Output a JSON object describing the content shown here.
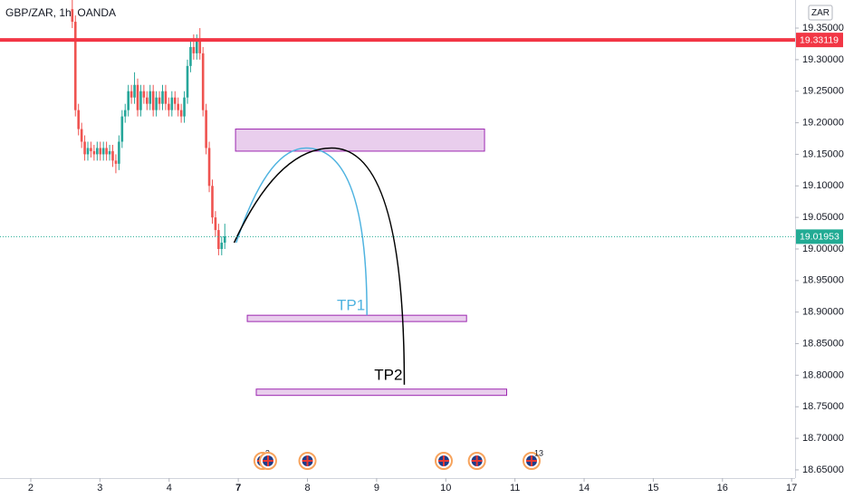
{
  "chart_data": {
    "type": "candlestick",
    "title": "GBP/ZAR, 1h, OANDA",
    "currency": "ZAR",
    "colors": {
      "up": "#26a69a",
      "down": "#ef5350"
    },
    "x": [
      0.6,
      0.645,
      0.69,
      0.735,
      0.78,
      0.825,
      0.87,
      0.915,
      0.96,
      1.005,
      1.05,
      1.095,
      1.14,
      1.185,
      1.23,
      1.275,
      1.32,
      1.365,
      1.41,
      1.455,
      1.5,
      1.545,
      1.59,
      1.635,
      1.68,
      1.725,
      1.77,
      1.815,
      1.86,
      1.905,
      1.95,
      1.995,
      2.04,
      2.085,
      2.13,
      2.175,
      2.22,
      2.265,
      2.31,
      2.355,
      2.4,
      2.445,
      2.49,
      2.535,
      2.58,
      2.625,
      2.67,
      2.715,
      2.76,
      2.805
    ],
    "open": [
      19.38,
      19.36,
      19.22,
      19.19,
      19.17,
      19.15,
      19.16,
      19.155,
      19.15,
      19.16,
      19.15,
      19.16,
      19.15,
      19.155,
      19.14,
      19.135,
      19.17,
      19.21,
      19.22,
      19.25,
      19.24,
      19.26,
      19.22,
      19.25,
      19.24,
      19.23,
      19.25,
      19.22,
      19.24,
      19.23,
      19.25,
      19.23,
      19.22,
      19.24,
      19.23,
      19.22,
      19.21,
      19.24,
      19.29,
      19.32,
      19.31,
      19.33,
      19.31,
      19.22,
      19.16,
      19.1,
      19.05,
      19.03,
      19.0,
      19.01
    ],
    "high": [
      19.4,
      19.37,
      19.23,
      19.2,
      19.18,
      19.17,
      19.17,
      19.165,
      19.17,
      19.17,
      19.17,
      19.17,
      19.165,
      19.165,
      19.15,
      19.18,
      19.22,
      19.23,
      19.26,
      19.26,
      19.28,
      19.27,
      19.26,
      19.26,
      19.25,
      19.26,
      19.26,
      19.25,
      19.25,
      19.26,
      19.26,
      19.24,
      19.25,
      19.25,
      19.24,
      19.23,
      19.25,
      19.3,
      19.33,
      19.34,
      19.34,
      19.35,
      19.32,
      19.23,
      19.17,
      19.11,
      19.06,
      19.04,
      19.02,
      19.04
    ],
    "low": [
      19.35,
      19.21,
      19.18,
      19.16,
      19.14,
      19.14,
      19.145,
      19.14,
      19.14,
      19.14,
      19.14,
      19.14,
      19.14,
      19.13,
      19.12,
      19.125,
      19.16,
      19.2,
      19.21,
      19.23,
      19.23,
      19.21,
      19.21,
      19.23,
      19.22,
      19.22,
      19.21,
      19.21,
      19.22,
      19.22,
      19.22,
      19.21,
      19.21,
      19.22,
      19.21,
      19.2,
      19.2,
      19.23,
      19.28,
      19.3,
      19.3,
      19.3,
      19.21,
      19.15,
      19.09,
      19.04,
      19.02,
      18.99,
      18.99,
      19.0
    ],
    "close": [
      19.36,
      19.22,
      19.19,
      19.17,
      19.15,
      19.16,
      19.155,
      19.15,
      19.16,
      19.15,
      19.16,
      19.15,
      19.155,
      19.14,
      19.135,
      19.17,
      19.21,
      19.22,
      19.25,
      19.24,
      19.26,
      19.22,
      19.25,
      19.24,
      19.23,
      19.25,
      19.22,
      19.24,
      19.23,
      19.25,
      19.23,
      19.22,
      19.24,
      19.23,
      19.22,
      19.21,
      19.24,
      19.29,
      19.32,
      19.31,
      19.33,
      19.31,
      19.22,
      19.16,
      19.1,
      19.05,
      19.03,
      19.0,
      19.01,
      19.02
    ],
    "xlim": [
      -0.445,
      11.05
    ],
    "xticks": [
      {
        "value": 0,
        "label": "2"
      },
      {
        "value": 1,
        "label": "3"
      },
      {
        "value": 2,
        "label": "4"
      },
      {
        "value": 3,
        "label": "7"
      },
      {
        "value": 4,
        "label": "8"
      },
      {
        "value": 5,
        "label": "9"
      },
      {
        "value": 6,
        "label": "10"
      },
      {
        "value": 7,
        "label": "11"
      },
      {
        "value": 8,
        "label": "14"
      },
      {
        "value": 9,
        "label": "15"
      },
      {
        "value": 10,
        "label": "16"
      },
      {
        "value": 11,
        "label": "17"
      }
    ],
    "ylim": [
      18.637,
      19.3945
    ],
    "yticks": [
      {
        "value": 19.35,
        "label": "19.35000"
      },
      {
        "value": 19.3,
        "label": "19.30000"
      },
      {
        "value": 19.25,
        "label": "19.25000"
      },
      {
        "value": 19.2,
        "label": "19.20000"
      },
      {
        "value": 19.15,
        "label": "19.15000"
      },
      {
        "value": 19.1,
        "label": "19.10000"
      },
      {
        "value": 19.05,
        "label": "19.05000"
      },
      {
        "value": 19.0,
        "label": "19.00000"
      },
      {
        "value": 18.95,
        "label": "18.95000"
      },
      {
        "value": 18.9,
        "label": "18.90000"
      },
      {
        "value": 18.85,
        "label": "18.85000"
      },
      {
        "value": 18.8,
        "label": "18.80000"
      },
      {
        "value": 18.75,
        "label": "18.75000"
      },
      {
        "value": 18.7,
        "label": "18.70000"
      },
      {
        "value": 18.65,
        "label": "18.65000"
      }
    ],
    "price_lines": [
      {
        "value": 19.33119,
        "label": "19.33119",
        "color": "#f23645",
        "style": "solid"
      },
      {
        "value": 19.01953,
        "label": "19.01953",
        "color": "#22ab94",
        "style": "dotted"
      }
    ],
    "zones": [
      {
        "x": [
          2.96,
          6.56
        ],
        "y": [
          19.155,
          19.19
        ]
      },
      {
        "x": [
          3.13,
          6.3
        ],
        "y": [
          18.885,
          18.895
        ]
      },
      {
        "x": [
          3.26,
          6.88
        ],
        "y": [
          18.768,
          18.778
        ]
      }
    ],
    "paths": [
      {
        "color": "#4fb3e0",
        "x": [
          2.97,
          3.98,
          4.86
        ],
        "y": [
          19.01,
          19.16,
          18.895
        ],
        "label": "TP1"
      },
      {
        "color": "#000000",
        "x": [
          2.94,
          4.35,
          5.4
        ],
        "y": [
          19.01,
          19.16,
          18.785
        ],
        "label": "TP2"
      }
    ],
    "events": {
      "x": [
        3.35,
        3.43,
        4.0,
        5.97,
        6.45,
        7.24
      ],
      "labels": [
        "2",
        null,
        null,
        null,
        null,
        "13"
      ]
    }
  }
}
